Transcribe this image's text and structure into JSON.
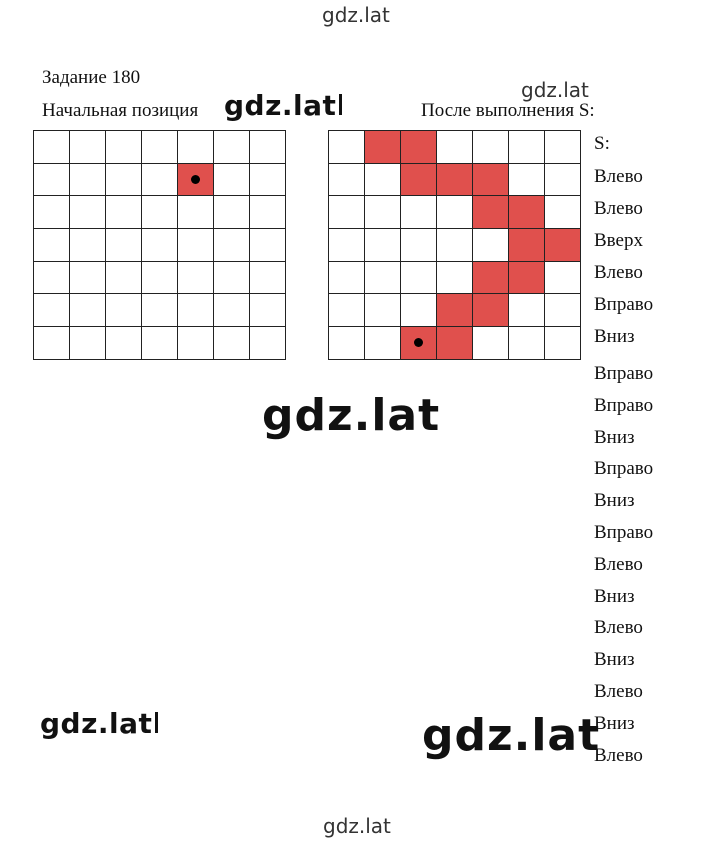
{
  "watermarks": {
    "top": "gdz.lat",
    "near_left_heading": "gdz.lat",
    "near_right_heading": "gdz.lat",
    "center": "gdz.lat",
    "bottom_left": "gdz.lat",
    "bottom_right": "gdz.lat",
    "bottom": "gdz.lat"
  },
  "task": {
    "title": "Задание 180",
    "start_label": "Начальная позиция",
    "after_label": "После выполнения S:"
  },
  "grid_start": {
    "rows": 7,
    "cols": 7,
    "red_cells": [
      [
        1,
        4
      ]
    ],
    "dot": [
      1,
      4
    ]
  },
  "grid_after": {
    "rows": 7,
    "cols": 7,
    "red_cells": [
      [
        0,
        1
      ],
      [
        0,
        2
      ],
      [
        1,
        2
      ],
      [
        1,
        3
      ],
      [
        1,
        4
      ],
      [
        2,
        4
      ],
      [
        2,
        5
      ],
      [
        3,
        5
      ],
      [
        3,
        6
      ],
      [
        4,
        4
      ],
      [
        4,
        5
      ],
      [
        5,
        3
      ],
      [
        5,
        4
      ],
      [
        6,
        2
      ],
      [
        6,
        3
      ]
    ],
    "dot": [
      6,
      2
    ]
  },
  "commands": [
    "S:",
    "Влево",
    "Влево",
    "Вверх",
    "Влево",
    "Вправо",
    "Вниз",
    "Вправо",
    "Вправо",
    "Вниз",
    "Вправо",
    "Вниз",
    "Вправо",
    "Влево",
    "Вниз",
    "Влево",
    "Вниз",
    "Влево",
    "Вниз",
    "Влево"
  ]
}
